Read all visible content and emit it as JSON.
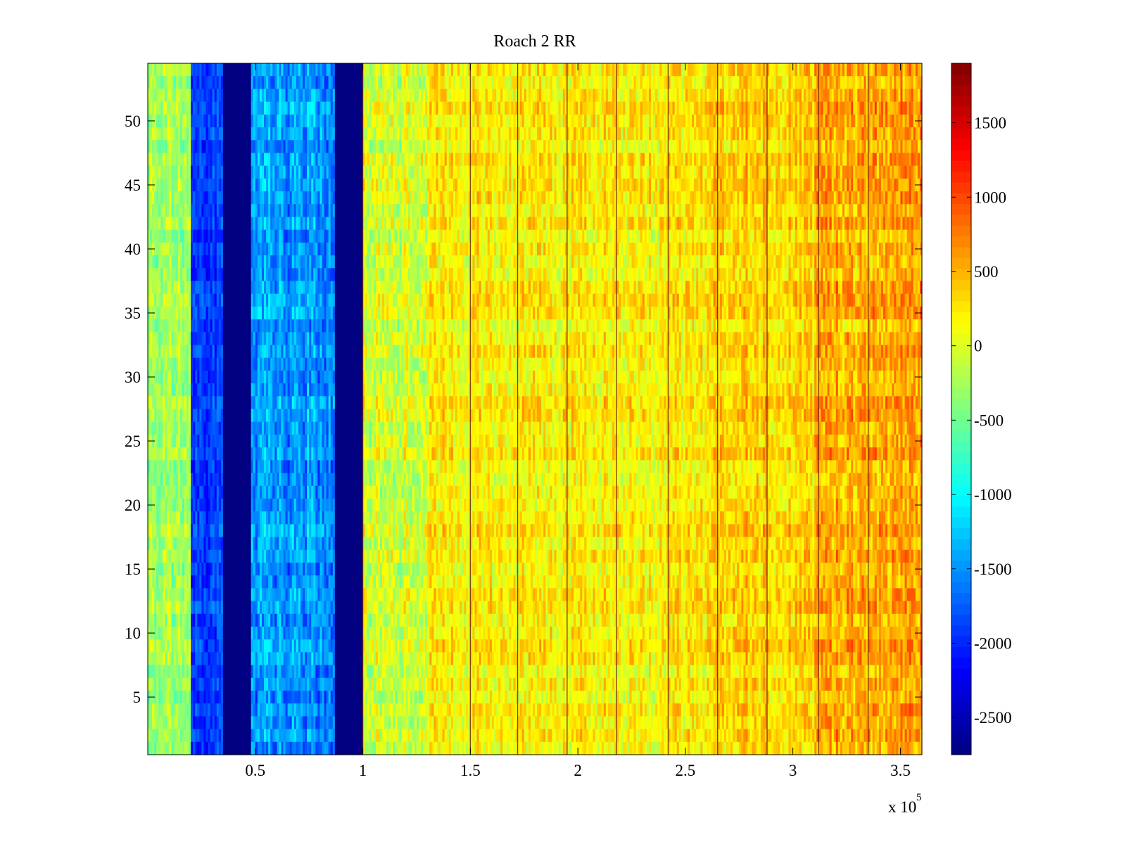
{
  "chart_data": {
    "type": "heatmap",
    "title": "Roach 2 RR",
    "xlabel": "",
    "ylabel": "",
    "x_multiplier_label": "x 10",
    "x_multiplier_exponent": "5",
    "xlim": [
      0,
      3.6
    ],
    "ylim": [
      0.5,
      54.5
    ],
    "x_ticks": [
      0.5,
      1,
      1.5,
      2,
      2.5,
      3,
      3.5
    ],
    "x_tick_labels": [
      "0.5",
      "1",
      "1.5",
      "2",
      "2.5",
      "3",
      "3.5"
    ],
    "y_ticks": [
      5,
      10,
      15,
      20,
      25,
      30,
      35,
      40,
      45,
      50
    ],
    "y_tick_labels": [
      "5",
      "10",
      "15",
      "20",
      "25",
      "30",
      "35",
      "40",
      "45",
      "50"
    ],
    "rows": 54,
    "colormap": "jet",
    "colorbar": {
      "clim": [
        -2750,
        1900
      ],
      "ticks": [
        -2500,
        -2000,
        -1500,
        -1000,
        -500,
        0,
        500,
        1000,
        1500
      ],
      "tick_labels": [
        "-2500",
        "-2000",
        "-1500",
        "-1000",
        "-500",
        "0",
        "500",
        "1000",
        "1500"
      ]
    },
    "column_profile": [
      {
        "x_start": 0.0,
        "x_end": 0.2,
        "mean": -300,
        "spread": 350
      },
      {
        "x_start": 0.2,
        "x_end": 0.35,
        "mean": -1900,
        "spread": 300
      },
      {
        "x_start": 0.35,
        "x_end": 0.48,
        "mean": -2750,
        "spread": 0
      },
      {
        "x_start": 0.48,
        "x_end": 0.87,
        "mean": -1500,
        "spread": 400
      },
      {
        "x_start": 0.87,
        "x_end": 1.0,
        "mean": -2750,
        "spread": 0
      },
      {
        "x_start": 1.0,
        "x_end": 1.3,
        "mean": -50,
        "spread": 400
      },
      {
        "x_start": 1.3,
        "x_end": 2.6,
        "mean": 200,
        "spread": 350
      },
      {
        "x_start": 2.6,
        "x_end": 3.1,
        "mean": 350,
        "spread": 350
      },
      {
        "x_start": 3.1,
        "x_end": 3.6,
        "mean": 550,
        "spread": 400
      }
    ],
    "dark_vertical_lines_x": [
      1.0,
      1.5,
      1.72,
      1.95,
      2.18,
      2.42,
      2.65,
      2.88,
      3.12,
      3.35
    ]
  }
}
